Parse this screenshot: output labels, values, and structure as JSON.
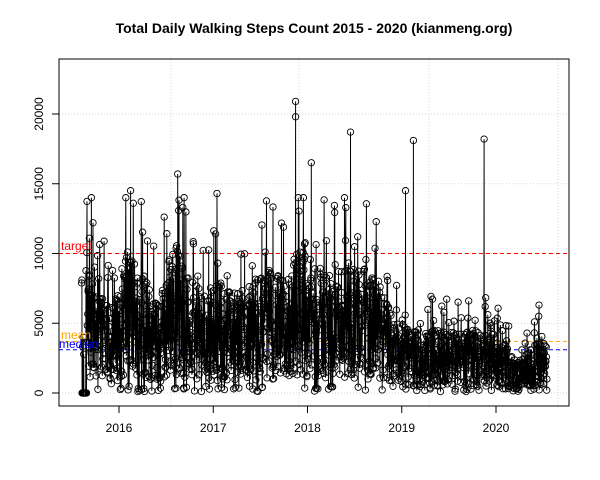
{
  "chart_data": {
    "type": "scatter",
    "subtype": "daily points with vertical drop lines (type='o'/'h' style)",
    "title": "Total Daily Walking Steps Count 2015 - 2020 (kianmeng.org)",
    "xlabel": "",
    "ylabel": "",
    "x_ticks": [
      "2016",
      "2017",
      "2018",
      "2019",
      "2020"
    ],
    "y_ticks": [
      0,
      5000,
      10000,
      15000,
      20000
    ],
    "ylim": [
      0,
      23500
    ],
    "xlim": [
      "2015-06",
      "2020-09"
    ],
    "date_range": [
      "2015-08",
      "2020-07"
    ],
    "grid": true,
    "reference_lines": [
      {
        "label": "target",
        "value": 10000,
        "color": "#ff0000",
        "style": "dashed"
      },
      {
        "label": "mean",
        "value": 3700,
        "color": "#ffa500",
        "style": "dashed"
      },
      {
        "label": "median",
        "value": 3100,
        "color": "#0000ff",
        "style": "dashed"
      }
    ],
    "notable_points": [
      {
        "date": "2015-09",
        "value": 14000
      },
      {
        "date": "2016-02",
        "value": 14500
      },
      {
        "date": "2016-08",
        "value": 15700
      },
      {
        "date": "2017-01",
        "value": 14300
      },
      {
        "date": "2017-11",
        "value": 20900
      },
      {
        "date": "2017-11",
        "value": 19800
      },
      {
        "date": "2018-01",
        "value": 16500
      },
      {
        "date": "2018-06",
        "value": 18700
      },
      {
        "date": "2019-02",
        "value": 18100
      },
      {
        "date": "2019-01",
        "value": 14500
      },
      {
        "date": "2019-11",
        "value": 18200
      },
      {
        "date": "2020-06",
        "value": 6300
      }
    ],
    "monthly_typical": {
      "months": [
        "2015-08",
        "2015-10",
        "2015-12",
        "2016-02",
        "2016-04",
        "2016-06",
        "2016-08",
        "2016-10",
        "2016-12",
        "2017-02",
        "2017-04",
        "2017-06",
        "2017-08",
        "2017-10",
        "2017-12",
        "2018-02",
        "2018-04",
        "2018-06",
        "2018-08",
        "2018-10",
        "2018-12",
        "2019-02",
        "2019-04",
        "2019-06",
        "2019-08",
        "2019-10",
        "2019-12",
        "2020-02",
        "2020-04",
        "2020-06"
      ],
      "values": [
        6500,
        5000,
        3000,
        6000,
        5000,
        3500,
        6500,
        4500,
        4000,
        4500,
        4000,
        4500,
        5000,
        4500,
        6000,
        5000,
        5000,
        5500,
        5000,
        4500,
        3000,
        2500,
        2500,
        2500,
        2500,
        2500,
        2500,
        2000,
        1200,
        2000
      ]
    }
  },
  "axis": {
    "y_labels": [
      "0",
      "5000",
      "10000",
      "15000",
      "20000"
    ],
    "x_labels": [
      "2016",
      "2017",
      "2018",
      "2019",
      "2020"
    ]
  },
  "labels": {
    "target": "target",
    "mean": "mean",
    "median": "median"
  },
  "colors": {
    "target": "#ff0000",
    "mean": "#ffa500",
    "median": "#0000ff",
    "points": "#000000",
    "grid": "#d3d3d3"
  }
}
